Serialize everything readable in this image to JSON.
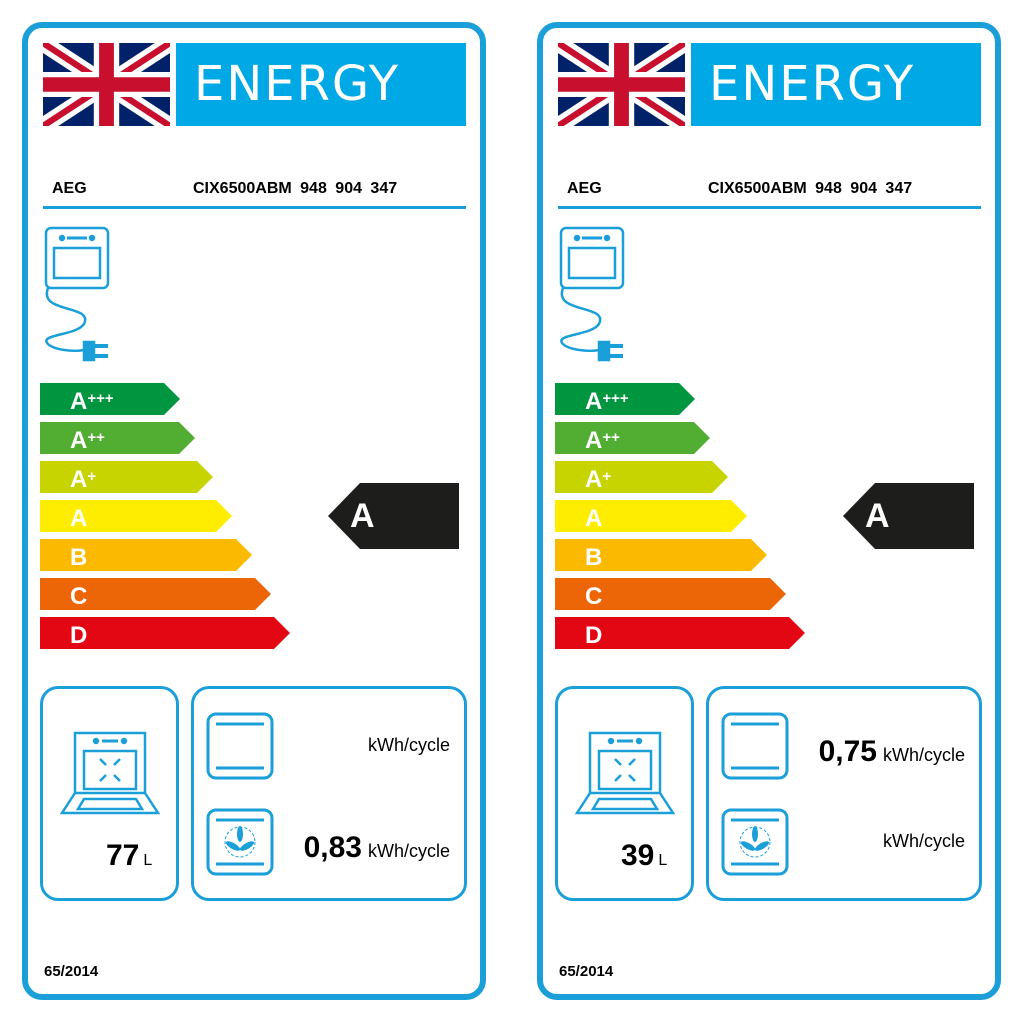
{
  "labels": [
    {
      "banner": "ENERGY",
      "brand": "AEG",
      "model": "CIX6500ABM  948 904 347",
      "rating": "A",
      "volume": "77",
      "volume_unit": "L",
      "conventional": {
        "value": "",
        "unit": "kWh/cycle"
      },
      "fan": {
        "value": "0,83",
        "unit": "kWh/cycle"
      },
      "regulation": "65/2014"
    },
    {
      "banner": "ENERGY",
      "brand": "AEG",
      "model": "CIX6500ABM  948 904 347",
      "rating": "A",
      "volume": "39",
      "volume_unit": "L",
      "conventional": {
        "value": "0,75",
        "unit": "kWh/cycle"
      },
      "fan": {
        "value": "",
        "unit": "kWh/cycle"
      },
      "regulation": "65/2014"
    }
  ],
  "classes": [
    {
      "letter": "A",
      "plus": "+++",
      "color": "#00963f"
    },
    {
      "letter": "A",
      "plus": "++",
      "color": "#52ae32"
    },
    {
      "letter": "A",
      "plus": "+",
      "color": "#c8d400"
    },
    {
      "letter": "A",
      "plus": "",
      "color": "#ffed00"
    },
    {
      "letter": "B",
      "plus": "",
      "color": "#fbba00"
    },
    {
      "letter": "C",
      "plus": "",
      "color": "#ec6608"
    },
    {
      "letter": "D",
      "plus": "",
      "color": "#e30613"
    }
  ],
  "colors": {
    "frame": "#1a9fd9",
    "banner": "#00a9e6",
    "rating_arrow": "#1d1d1b"
  }
}
